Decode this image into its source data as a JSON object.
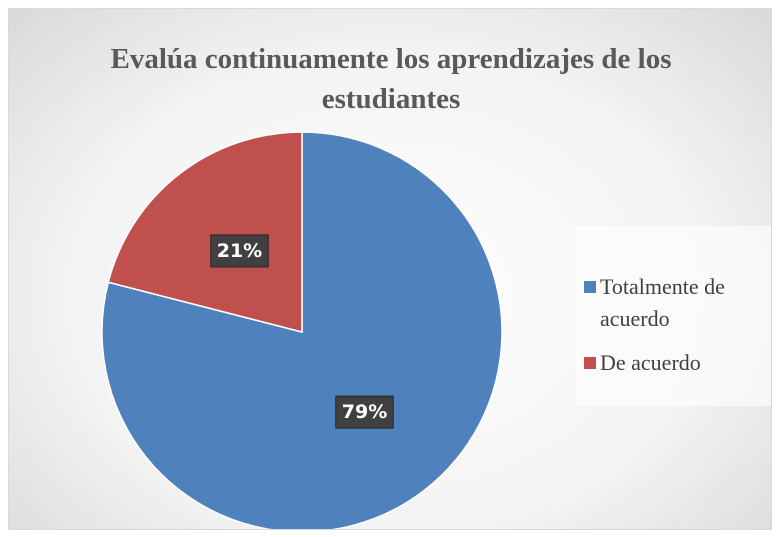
{
  "chart_data": {
    "type": "pie",
    "title": "Evalúa continuamente los aprendizajes de los estudiantes",
    "categories": [
      "Totalmente de acuerdo",
      "De acuerdo"
    ],
    "values": [
      79,
      21
    ],
    "value_labels": [
      "79%",
      "21%"
    ],
    "colors": [
      "#4f81bd",
      "#c0504d"
    ],
    "legend": "right"
  }
}
